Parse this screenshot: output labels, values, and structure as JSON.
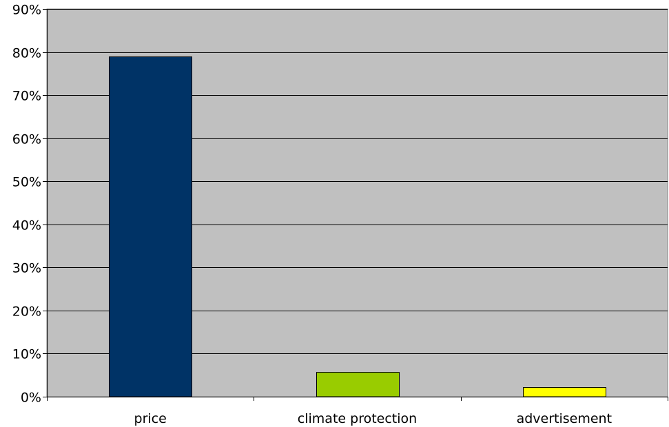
{
  "chart_data": {
    "type": "bar",
    "categories": [
      "price",
      "climate protection",
      "advertisement"
    ],
    "values": [
      79,
      5.8,
      2.3
    ],
    "value_unit": "%",
    "title": "",
    "xlabel": "",
    "ylabel": "",
    "ylim": [
      0,
      90
    ],
    "yticks": [
      "0%",
      "10%",
      "20%",
      "30%",
      "40%",
      "50%",
      "60%",
      "70%",
      "80%",
      "90%"
    ],
    "grid": true,
    "legend": "none",
    "colors": {
      "plot_background": "#c0c0c0",
      "gridline": "#000000",
      "bars": [
        "#003366",
        "#99cc00",
        "#ffff00"
      ],
      "bar_outline": "#000000"
    }
  }
}
